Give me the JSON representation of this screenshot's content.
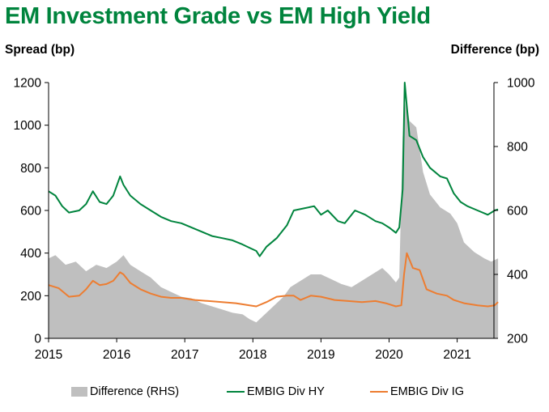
{
  "title": "EM Investment Grade vs EM High Yield",
  "chart_data": {
    "type": "line",
    "title": "EM Investment Grade vs EM High Yield",
    "ylabel": "Spread (bp)",
    "y2label": "Difference (bp)",
    "xlabel": "",
    "ylim": [
      0,
      1200
    ],
    "y2lim": [
      200,
      1000
    ],
    "xlim": [
      2015.0,
      2021.6
    ],
    "yticks": [
      "0",
      "200",
      "400",
      "600",
      "800",
      "1000",
      "1200"
    ],
    "y2ticks": [
      "200",
      "400",
      "600",
      "800",
      "1000"
    ],
    "xticks": [
      "2015",
      "2016",
      "2017",
      "2018",
      "2019",
      "2020",
      "2021"
    ],
    "legend_position": "bottom",
    "grid": false,
    "series": [
      {
        "name": "Difference (RHS)",
        "type": "area",
        "axis": "right",
        "color": "#BFBFBF",
        "points": [
          [
            2015.0,
            450
          ],
          [
            2015.1,
            460
          ],
          [
            2015.25,
            430
          ],
          [
            2015.4,
            440
          ],
          [
            2015.55,
            410
          ],
          [
            2015.7,
            430
          ],
          [
            2015.85,
            420
          ],
          [
            2016.0,
            440
          ],
          [
            2016.1,
            460
          ],
          [
            2016.2,
            430
          ],
          [
            2016.35,
            410
          ],
          [
            2016.5,
            390
          ],
          [
            2016.65,
            360
          ],
          [
            2016.8,
            345
          ],
          [
            2016.95,
            330
          ],
          [
            2017.1,
            325
          ],
          [
            2017.25,
            310
          ],
          [
            2017.4,
            300
          ],
          [
            2017.55,
            290
          ],
          [
            2017.7,
            280
          ],
          [
            2017.85,
            275
          ],
          [
            2017.95,
            260
          ],
          [
            2018.05,
            250
          ],
          [
            2018.15,
            270
          ],
          [
            2018.3,
            300
          ],
          [
            2018.45,
            330
          ],
          [
            2018.55,
            360
          ],
          [
            2018.7,
            380
          ],
          [
            2018.85,
            400
          ],
          [
            2019.0,
            400
          ],
          [
            2019.15,
            385
          ],
          [
            2019.3,
            370
          ],
          [
            2019.45,
            360
          ],
          [
            2019.6,
            380
          ],
          [
            2019.75,
            400
          ],
          [
            2019.9,
            420
          ],
          [
            2020.0,
            400
          ],
          [
            2020.1,
            375
          ],
          [
            2020.15,
            390
          ],
          [
            2020.2,
            830
          ],
          [
            2020.25,
            950
          ],
          [
            2020.3,
            880
          ],
          [
            2020.4,
            860
          ],
          [
            2020.5,
            720
          ],
          [
            2020.6,
            650
          ],
          [
            2020.75,
            610
          ],
          [
            2020.9,
            590
          ],
          [
            2021.0,
            560
          ],
          [
            2021.1,
            500
          ],
          [
            2021.25,
            470
          ],
          [
            2021.4,
            450
          ],
          [
            2021.5,
            440
          ],
          [
            2021.6,
            450
          ]
        ]
      },
      {
        "name": "EMBIG Div HY",
        "type": "line",
        "axis": "left",
        "color": "#00843D",
        "points": [
          [
            2015.0,
            690
          ],
          [
            2015.1,
            670
          ],
          [
            2015.2,
            620
          ],
          [
            2015.3,
            590
          ],
          [
            2015.45,
            600
          ],
          [
            2015.55,
            630
          ],
          [
            2015.65,
            690
          ],
          [
            2015.75,
            640
          ],
          [
            2015.85,
            630
          ],
          [
            2015.95,
            670
          ],
          [
            2016.05,
            760
          ],
          [
            2016.1,
            720
          ],
          [
            2016.2,
            670
          ],
          [
            2016.35,
            630
          ],
          [
            2016.5,
            600
          ],
          [
            2016.65,
            570
          ],
          [
            2016.8,
            550
          ],
          [
            2016.95,
            540
          ],
          [
            2017.1,
            520
          ],
          [
            2017.25,
            500
          ],
          [
            2017.4,
            480
          ],
          [
            2017.55,
            470
          ],
          [
            2017.7,
            460
          ],
          [
            2017.85,
            440
          ],
          [
            2017.95,
            425
          ],
          [
            2018.05,
            410
          ],
          [
            2018.1,
            385
          ],
          [
            2018.2,
            430
          ],
          [
            2018.35,
            470
          ],
          [
            2018.5,
            530
          ],
          [
            2018.6,
            600
          ],
          [
            2018.75,
            610
          ],
          [
            2018.9,
            620
          ],
          [
            2019.0,
            580
          ],
          [
            2019.1,
            600
          ],
          [
            2019.25,
            550
          ],
          [
            2019.35,
            540
          ],
          [
            2019.5,
            600
          ],
          [
            2019.65,
            580
          ],
          [
            2019.8,
            550
          ],
          [
            2019.9,
            540
          ],
          [
            2020.0,
            520
          ],
          [
            2020.1,
            495
          ],
          [
            2020.15,
            520
          ],
          [
            2020.2,
            700
          ],
          [
            2020.23,
            1200
          ],
          [
            2020.3,
            950
          ],
          [
            2020.4,
            930
          ],
          [
            2020.5,
            850
          ],
          [
            2020.6,
            800
          ],
          [
            2020.75,
            760
          ],
          [
            2020.85,
            750
          ],
          [
            2020.95,
            680
          ],
          [
            2021.05,
            640
          ],
          [
            2021.15,
            620
          ],
          [
            2021.3,
            600
          ],
          [
            2021.45,
            580
          ],
          [
            2021.55,
            600
          ],
          [
            2021.6,
            605
          ]
        ]
      },
      {
        "name": "EMBIG Div IG",
        "type": "line",
        "axis": "left",
        "color": "#ED7D31",
        "points": [
          [
            2015.0,
            250
          ],
          [
            2015.15,
            235
          ],
          [
            2015.3,
            195
          ],
          [
            2015.45,
            200
          ],
          [
            2015.55,
            230
          ],
          [
            2015.65,
            270
          ],
          [
            2015.75,
            250
          ],
          [
            2015.85,
            255
          ],
          [
            2015.95,
            270
          ],
          [
            2016.05,
            310
          ],
          [
            2016.1,
            300
          ],
          [
            2016.2,
            260
          ],
          [
            2016.35,
            230
          ],
          [
            2016.5,
            210
          ],
          [
            2016.65,
            195
          ],
          [
            2016.8,
            190
          ],
          [
            2016.95,
            190
          ],
          [
            2017.15,
            180
          ],
          [
            2017.35,
            175
          ],
          [
            2017.55,
            170
          ],
          [
            2017.75,
            165
          ],
          [
            2017.95,
            155
          ],
          [
            2018.05,
            150
          ],
          [
            2018.2,
            170
          ],
          [
            2018.35,
            195
          ],
          [
            2018.5,
            200
          ],
          [
            2018.6,
            200
          ],
          [
            2018.7,
            180
          ],
          [
            2018.85,
            200
          ],
          [
            2019.0,
            195
          ],
          [
            2019.2,
            180
          ],
          [
            2019.4,
            175
          ],
          [
            2019.6,
            170
          ],
          [
            2019.8,
            175
          ],
          [
            2019.95,
            165
          ],
          [
            2020.1,
            150
          ],
          [
            2020.18,
            155
          ],
          [
            2020.22,
            300
          ],
          [
            2020.26,
            400
          ],
          [
            2020.35,
            330
          ],
          [
            2020.45,
            320
          ],
          [
            2020.55,
            230
          ],
          [
            2020.7,
            210
          ],
          [
            2020.85,
            200
          ],
          [
            2020.95,
            180
          ],
          [
            2021.1,
            165
          ],
          [
            2021.3,
            155
          ],
          [
            2021.45,
            150
          ],
          [
            2021.55,
            155
          ],
          [
            2021.6,
            170
          ]
        ]
      }
    ]
  }
}
